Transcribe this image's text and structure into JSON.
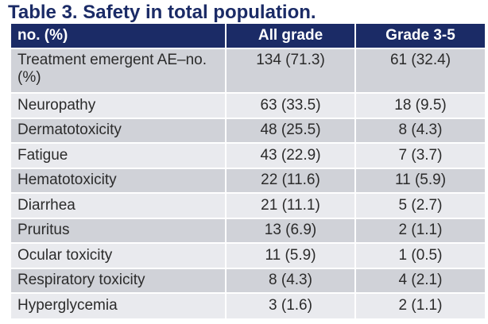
{
  "title": "Table 3. Safety in total population.",
  "colors": {
    "header_bg": "#1b2b66",
    "header_text": "#ffffff",
    "title_text": "#1b2b66",
    "row_dark": "#d0d2d8",
    "row_light": "#e9eaee"
  },
  "table": {
    "headers": [
      "no. (%)",
      "All grade",
      "Grade 3-5"
    ],
    "rows": [
      [
        "Treatment emergent AE–no. (%)",
        "134 (71.3)",
        "61 (32.4)"
      ],
      [
        "Neuropathy",
        "63 (33.5)",
        "18 (9.5)"
      ],
      [
        "Dermatotoxicity",
        "48 (25.5)",
        "8 (4.3)"
      ],
      [
        "Fatigue",
        "43 (22.9)",
        "7 (3.7)"
      ],
      [
        "Hematotoxicity",
        "22 (11.6)",
        "11 (5.9)"
      ],
      [
        "Diarrhea",
        "21 (11.1)",
        "5 (2.7)"
      ],
      [
        "Pruritus",
        "13 (6.9)",
        "2 (1.1)"
      ],
      [
        "Ocular toxicity",
        "11 (5.9)",
        "1 (0.5)"
      ],
      [
        "Respiratory toxicity",
        "8 (4.3)",
        "4 (2.1)"
      ],
      [
        "Hyperglycemia",
        "3 (1.6)",
        "2 (1.1)"
      ]
    ]
  }
}
